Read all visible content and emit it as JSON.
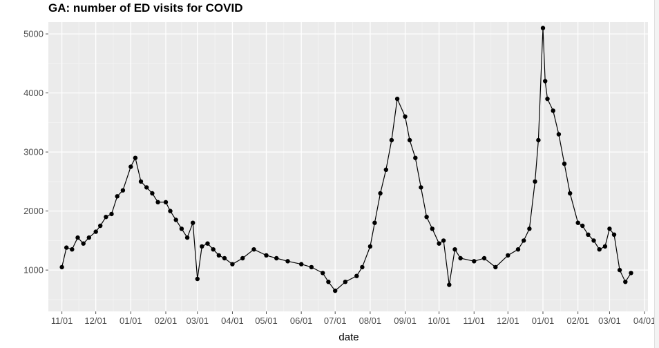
{
  "chart_data": {
    "type": "line",
    "title": "GA: number of ED visits for COVID",
    "xlabel": "date",
    "ylabel": "",
    "ylim": [
      300,
      5200
    ],
    "yticks": [
      1000,
      2000,
      3000,
      4000,
      5000
    ],
    "xlim": [
      "2020-10-20",
      "2022-04-04"
    ],
    "xticks": [
      {
        "date": "2020-11-01",
        "label": "11/01"
      },
      {
        "date": "2020-12-01",
        "label": "12/01"
      },
      {
        "date": "2021-01-01",
        "label": "01/01"
      },
      {
        "date": "2021-02-01",
        "label": "02/01"
      },
      {
        "date": "2021-03-01",
        "label": "03/01"
      },
      {
        "date": "2021-04-01",
        "label": "04/01"
      },
      {
        "date": "2021-05-01",
        "label": "05/01"
      },
      {
        "date": "2021-06-01",
        "label": "06/01"
      },
      {
        "date": "2021-07-01",
        "label": "07/01"
      },
      {
        "date": "2021-08-01",
        "label": "08/01"
      },
      {
        "date": "2021-09-01",
        "label": "09/01"
      },
      {
        "date": "2021-10-01",
        "label": "10/01"
      },
      {
        "date": "2021-11-01",
        "label": "11/01"
      },
      {
        "date": "2021-12-01",
        "label": "12/01"
      },
      {
        "date": "2022-01-01",
        "label": "01/01"
      },
      {
        "date": "2022-02-01",
        "label": "02/01"
      },
      {
        "date": "2022-03-01",
        "label": "03/01"
      },
      {
        "date": "2022-04-01",
        "label": "04/01"
      }
    ],
    "grid": true,
    "series": [
      {
        "x": [
          "2020-11-01",
          "2020-11-05",
          "2020-11-10",
          "2020-11-15",
          "2020-11-20",
          "2020-11-25",
          "2020-12-01",
          "2020-12-05",
          "2020-12-10",
          "2020-12-15",
          "2020-12-20",
          "2020-12-25",
          "2021-01-01",
          "2021-01-05",
          "2021-01-10",
          "2021-01-15",
          "2021-01-20",
          "2021-01-25",
          "2021-02-01",
          "2021-02-05",
          "2021-02-10",
          "2021-02-15",
          "2021-02-20",
          "2021-02-25",
          "2021-03-01",
          "2021-03-05",
          "2021-03-10",
          "2021-03-15",
          "2021-03-20",
          "2021-03-25",
          "2021-04-01",
          "2021-04-10",
          "2021-04-20",
          "2021-05-01",
          "2021-05-10",
          "2021-05-20",
          "2021-06-01",
          "2021-06-10",
          "2021-06-20",
          "2021-06-25",
          "2021-07-01",
          "2021-07-10",
          "2021-07-20",
          "2021-07-25",
          "2021-08-01",
          "2021-08-05",
          "2021-08-10",
          "2021-08-15",
          "2021-08-20",
          "2021-08-25",
          "2021-09-01",
          "2021-09-05",
          "2021-09-10",
          "2021-09-15",
          "2021-09-20",
          "2021-09-25",
          "2021-10-01",
          "2021-10-05",
          "2021-10-10",
          "2021-10-15",
          "2021-10-20",
          "2021-11-01",
          "2021-11-10",
          "2021-11-20",
          "2021-12-01",
          "2021-12-10",
          "2021-12-15",
          "2021-12-20",
          "2021-12-25",
          "2021-12-28",
          "2022-01-01",
          "2022-01-03",
          "2022-01-05",
          "2022-01-10",
          "2022-01-15",
          "2022-01-20",
          "2022-01-25",
          "2022-02-01",
          "2022-02-05",
          "2022-02-10",
          "2022-02-15",
          "2022-02-20",
          "2022-02-25",
          "2022-03-01",
          "2022-03-05",
          "2022-03-10",
          "2022-03-15",
          "2022-03-20"
        ],
        "y": [
          1050,
          1380,
          1350,
          1550,
          1450,
          1550,
          1650,
          1750,
          1900,
          1950,
          2250,
          2350,
          2750,
          2900,
          2500,
          2400,
          2300,
          2150,
          2150,
          2000,
          1850,
          1700,
          1550,
          1800,
          850,
          1400,
          1450,
          1350,
          1250,
          1200,
          1100,
          1200,
          1350,
          1250,
          1200,
          1150,
          1100,
          1050,
          950,
          800,
          650,
          800,
          900,
          1050,
          1400,
          1800,
          2300,
          2700,
          3200,
          3900,
          3600,
          3200,
          2900,
          2400,
          1900,
          1700,
          1450,
          1500,
          750,
          1350,
          1200,
          1150,
          1200,
          1050,
          1250,
          1350,
          1500,
          1700,
          2500,
          3200,
          5100,
          4200,
          3900,
          3700,
          3300,
          2800,
          2300,
          1800,
          1750,
          1600,
          1500,
          1350,
          1400,
          1700,
          1600,
          1000,
          800,
          950
        ]
      }
    ]
  }
}
